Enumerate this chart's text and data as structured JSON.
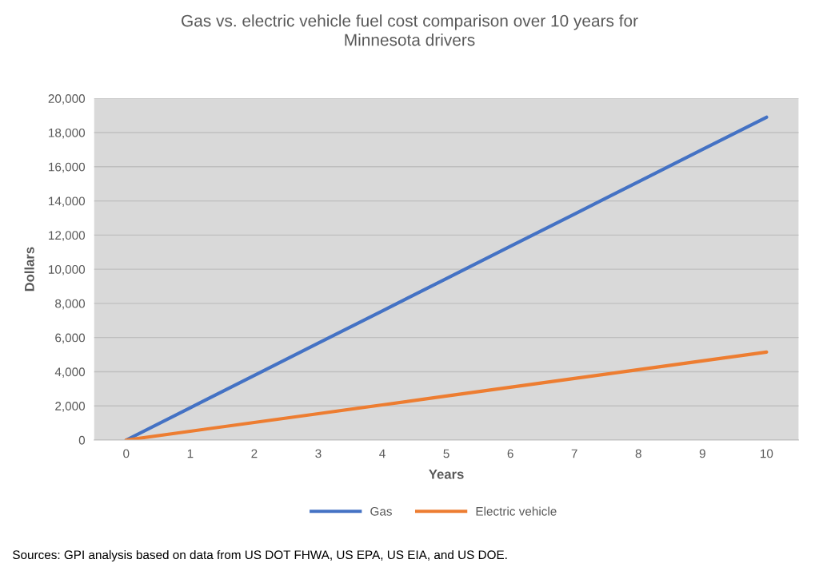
{
  "chart_data": {
    "type": "line",
    "title": "Gas vs. electric vehicle fuel cost comparison over 10 years for\nMinnesota drivers",
    "xlabel": "Years",
    "ylabel": "Dollars",
    "categories": [
      "0",
      "1",
      "2",
      "3",
      "4",
      "5",
      "6",
      "7",
      "8",
      "9",
      "10"
    ],
    "series": [
      {
        "name": "Gas",
        "color": "#4472c4",
        "values": [
          0,
          1890,
          3780,
          5670,
          7560,
          9450,
          11340,
          13230,
          15120,
          17010,
          18900
        ]
      },
      {
        "name": "Electric vehicle",
        "color": "#ed7d31",
        "values": [
          0,
          515,
          1030,
          1545,
          2060,
          2575,
          3090,
          3605,
          4120,
          4635,
          5150
        ]
      }
    ],
    "ylim": [
      0,
      20000
    ],
    "yticks": [
      {
        "value": 0,
        "label": "0"
      },
      {
        "value": 2000,
        "label": "2,000"
      },
      {
        "value": 4000,
        "label": "4,000"
      },
      {
        "value": 6000,
        "label": "6,000"
      },
      {
        "value": 8000,
        "label": "8,000"
      },
      {
        "value": 10000,
        "label": "10,000"
      },
      {
        "value": 12000,
        "label": "12,000"
      },
      {
        "value": 14000,
        "label": "14,000"
      },
      {
        "value": 16000,
        "label": "16,000"
      },
      {
        "value": 18000,
        "label": "18,000"
      },
      {
        "value": 20000,
        "label": "20,000"
      }
    ],
    "grid": "y",
    "legend": "bottom",
    "marker": "none",
    "line_style": "solid",
    "annotations": [
      "Sources: GPI analysis based on data from US DOT FHWA, US EPA, US EIA, and US DOE."
    ]
  }
}
